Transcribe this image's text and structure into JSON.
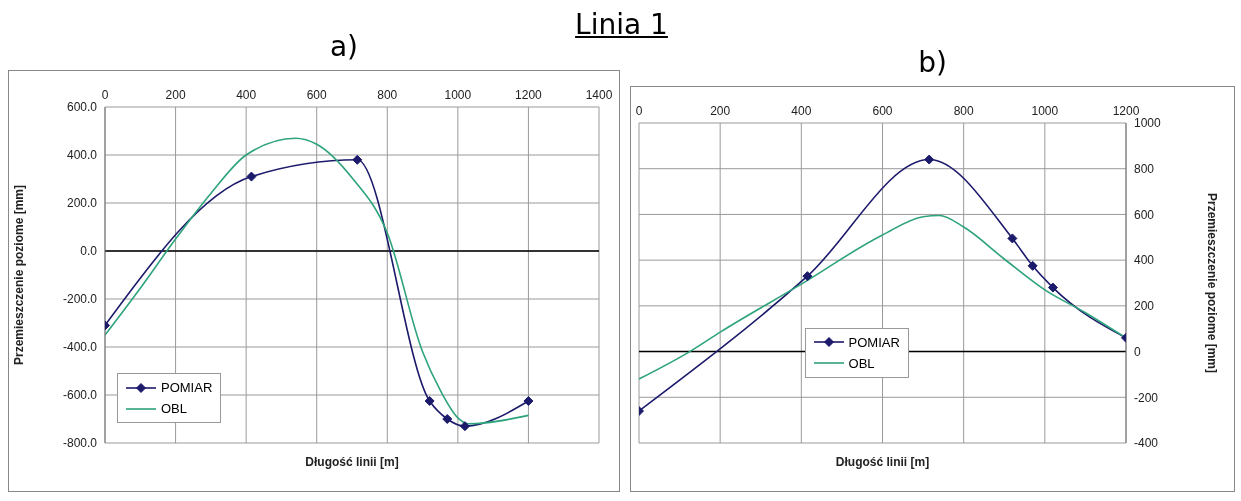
{
  "chart_data": [
    {
      "type": "line",
      "title": "Linia 1",
      "subtitle": "a)",
      "xlabel": "Długość linii [m]",
      "ylabel": "Przemieszczenie poziome [mm]",
      "xlim": [
        0,
        1400
      ],
      "xticks": [
        0,
        200,
        400,
        600,
        800,
        1000,
        1200,
        1400
      ],
      "ylim": [
        -800,
        600
      ],
      "yticks": [
        {
          "value": -800,
          "label": "-800.0"
        },
        {
          "value": -600,
          "label": "-600.0"
        },
        {
          "value": -400,
          "label": "-400.0"
        },
        {
          "value": -200,
          "label": "-200.0"
        },
        {
          "value": 0,
          "label": "0.0"
        },
        {
          "value": 200,
          "label": "200.0"
        },
        {
          "value": 400,
          "label": "400.0"
        },
        {
          "value": 600,
          "label": "600.0"
        }
      ],
      "grid": true,
      "legend": "bottom left",
      "ref_lines": [
        {
          "axis": "y",
          "value": 0,
          "color": "#000000"
        }
      ],
      "series": [
        {
          "name": "POMIAR",
          "color": "#1c1a6b",
          "marker": "diamond",
          "x": [
            0,
            415,
            715,
            920,
            970,
            1020,
            1200
          ],
          "values": [
            -310,
            310,
            380,
            -625,
            -700,
            -730,
            -625
          ]
        },
        {
          "name": "OBL",
          "color": "#2ea37c",
          "marker": "none",
          "x": [
            0,
            100,
            200,
            300,
            400,
            540,
            600,
            700,
            800,
            900,
            950,
            1000,
            1030,
            1200
          ],
          "values": [
            -350,
            -155,
            50,
            240,
            400,
            470,
            445,
            305,
            75,
            -420,
            -580,
            -695,
            -720,
            -685
          ]
        }
      ]
    },
    {
      "type": "line",
      "subtitle": "b)",
      "xlabel": "Długość linii [m]",
      "ylabel": "Przemieszczenie poziome [mm]",
      "xlim": [
        0,
        1200
      ],
      "xticks": [
        0,
        200,
        400,
        600,
        800,
        1000,
        1200
      ],
      "ylim": [
        -400,
        1000
      ],
      "yticks": [
        -400,
        -200,
        0,
        200,
        400,
        600,
        800,
        1000
      ],
      "grid": true,
      "legend": "center",
      "ref_lines": [
        {
          "axis": "y",
          "value": 0,
          "color": "#000000"
        }
      ],
      "series": [
        {
          "name": "POMIAR",
          "color": "#1c1a6b",
          "marker": "diamond",
          "x": [
            0,
            415,
            715,
            920,
            970,
            1020,
            1200
          ],
          "values": [
            -260,
            330,
            840,
            495,
            375,
            280,
            60
          ]
        },
        {
          "name": "OBL",
          "color": "#2ea37c",
          "marker": "none",
          "x": [
            0,
            125,
            200,
            400,
            600,
            700,
            740,
            800,
            900,
            1000,
            1100,
            1200
          ],
          "values": [
            -120,
            0,
            85,
            295,
            510,
            590,
            595,
            545,
            405,
            270,
            170,
            60
          ]
        }
      ]
    }
  ]
}
